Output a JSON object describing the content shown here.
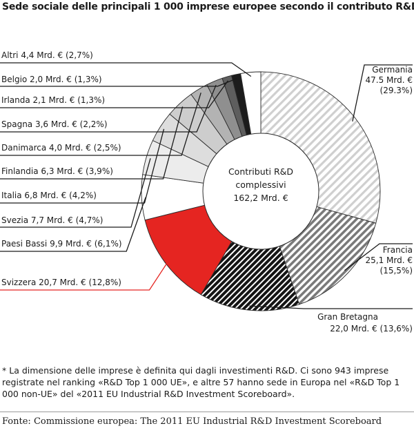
{
  "title": "Sede sociale delle principali 1 000 imprese europee secondo il contributo R&D*",
  "chart_data": {
    "type": "pie",
    "variant": "donut",
    "center_label": [
      "Contributi R&D",
      "complessivi",
      "162,2 Mrd. €"
    ],
    "total": 162.2,
    "unit": "Mrd. €",
    "slices": [
      {
        "name": "Germania",
        "value": 47.5,
        "percent": 29.3,
        "label_lines": [
          "Germania",
          "47.5 Mrd. €",
          "(29.3%)"
        ],
        "fill": "hatch-light",
        "color": "#d4d4d4"
      },
      {
        "name": "Francia",
        "value": 25.1,
        "percent": 15.5,
        "label_lines": [
          "Francia",
          "25,1 Mrd. €",
          "(15,5%)"
        ],
        "fill": "hatch-mid",
        "color": "#8c8c8c"
      },
      {
        "name": "Gran Bretagna",
        "value": 22.0,
        "percent": 13.6,
        "label_lines": [
          "Gran Bretagna",
          "22,0 Mrd. € (13,6%)"
        ],
        "fill": "hatch-dark",
        "color": "#1c1c1c"
      },
      {
        "name": "Svizzera",
        "value": 20.7,
        "percent": 12.8,
        "label_lines": [
          "Svizzera 20,7 Mrd. € (12,8%)"
        ],
        "fill": "solid",
        "color": "#e52521"
      },
      {
        "name": "Paesi Bassi",
        "value": 9.9,
        "percent": 6.1,
        "label_lines": [
          "Paesi Bassi  9,9 Mrd. € (6,1%)"
        ],
        "fill": "solid",
        "color": "#ffffff"
      },
      {
        "name": "Svezia",
        "value": 7.7,
        "percent": 4.7,
        "label_lines": [
          "Svezia 7,7 Mrd. € (4,7%)"
        ],
        "fill": "solid",
        "color": "#ececec"
      },
      {
        "name": "Italia",
        "value": 6.8,
        "percent": 4.2,
        "label_lines": [
          "Italia 6,8 Mrd. € (4,2%)"
        ],
        "fill": "solid",
        "color": "#dddddd"
      },
      {
        "name": "Finlandia",
        "value": 6.3,
        "percent": 3.9,
        "label_lines": [
          "Finlandia 6,3 Mrd. € (3,9%)"
        ],
        "fill": "solid",
        "color": "#cdcdcd"
      },
      {
        "name": "Danimarca",
        "value": 4.0,
        "percent": 2.5,
        "label_lines": [
          "Danimarca 4,0 Mrd. € (2,5%)"
        ],
        "fill": "solid",
        "color": "#b3b3b3"
      },
      {
        "name": "Spagna",
        "value": 3.6,
        "percent": 2.2,
        "label_lines": [
          "Spagna 3,6 Mrd. € (2,2%)"
        ],
        "fill": "solid",
        "color": "#8f8f8f"
      },
      {
        "name": "Irlanda",
        "value": 2.1,
        "percent": 1.3,
        "label_lines": [
          "Irlanda 2,1 Mrd. € (1,3%)"
        ],
        "fill": "solid",
        "color": "#5e5e5e"
      },
      {
        "name": "Belgio",
        "value": 2.0,
        "percent": 1.3,
        "label_lines": [
          "Belgio 2,0 Mrd. € (1,3%)"
        ],
        "fill": "solid",
        "color": "#1c1c1c"
      },
      {
        "name": "Altri",
        "value": 4.4,
        "percent": 2.7,
        "label_lines": [
          "Altri 4,4 Mrd. € (2,7%)"
        ],
        "fill": "solid",
        "color": "#ffffff"
      }
    ]
  },
  "note": "* La dimensione delle imprese è definita qui dagli investimenti R&D. Ci sono 943 imprese registrate nel ranking «R&D Top 1 000 UE», e altre 57 hanno sede in Europa nel «R&D Top 1 000 non-UE» del «2011 EU Industrial R&D Investment Scoreboard».",
  "source": "Fonte: Commissione europea: The 2011 EU Industrial R&D Investment Scoreboard"
}
